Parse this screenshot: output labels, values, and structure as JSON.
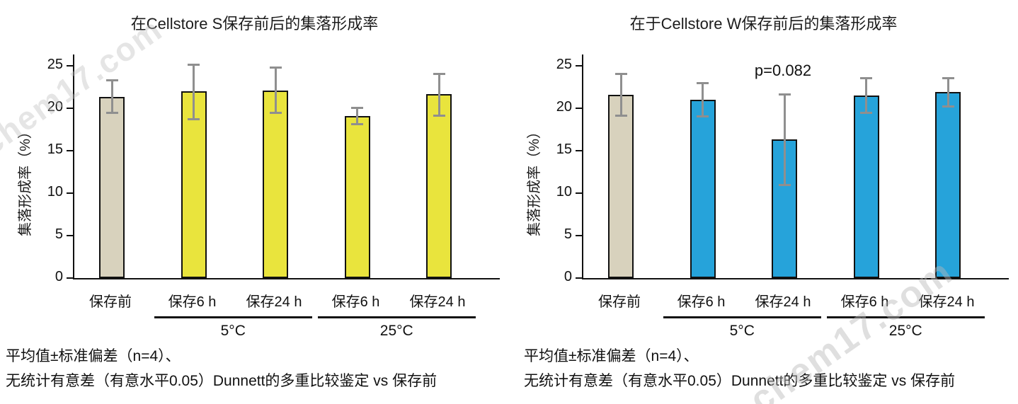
{
  "watermark": {
    "text": "chem17.com"
  },
  "chart_data": [
    {
      "type": "bar",
      "title": "在Cellstore S保存前后的集落形成率",
      "ylabel": "集落形成率（%）",
      "ylim": [
        0,
        25
      ],
      "yticks": [
        0,
        5,
        10,
        15,
        20,
        25
      ],
      "categories": [
        "保存前",
        "保存6 h",
        "保存24 h",
        "保存6 h",
        "保存24 h"
      ],
      "values": [
        21.3,
        22.0,
        22.1,
        19.1,
        21.7
      ],
      "err_low": [
        19.4,
        18.7,
        19.4,
        18.1,
        19.1
      ],
      "err_high": [
        23.3,
        25.2,
        24.8,
        20.1,
        24.1
      ],
      "bar_colors": [
        "#d8d2bd",
        "#e9e43d",
        "#e9e43d",
        "#e9e43d",
        "#e9e43d"
      ],
      "error_color": "#8f8f8f",
      "groups": [
        {
          "label": "5°C",
          "from": 1,
          "to": 2
        },
        {
          "label": "25°C",
          "from": 3,
          "to": 4
        }
      ],
      "annotations": [],
      "footnotes": [
        "平均值±标准偏差（n=4）、",
        "无统计有意差（有意水平0.05）Dunnett的多重比较鉴定 vs 保存前"
      ],
      "grid": false,
      "legend": "none"
    },
    {
      "type": "bar",
      "title": "在于Cellstore W保存前后的集落形成率",
      "ylabel": "集落形成率（%）",
      "ylim": [
        0,
        25
      ],
      "yticks": [
        0,
        5,
        10,
        15,
        20,
        25
      ],
      "categories": [
        "保存前",
        "保存6 h",
        "保存24 h",
        "保存6 h",
        "保存24 h"
      ],
      "values": [
        21.6,
        21.0,
        16.3,
        21.5,
        21.9
      ],
      "err_low": [
        19.1,
        19.0,
        10.9,
        19.4,
        20.2
      ],
      "err_high": [
        24.1,
        23.0,
        21.7,
        23.6,
        23.6
      ],
      "bar_colors": [
        "#d8d2bd",
        "#26a3da",
        "#26a3da",
        "#26a3da",
        "#26a3da"
      ],
      "error_color": "#8f8f8f",
      "groups": [
        {
          "label": "5°C",
          "from": 1,
          "to": 2
        },
        {
          "label": "25°C",
          "from": 3,
          "to": 4
        }
      ],
      "annotations": [
        {
          "text": "p=0.082",
          "bar": 2
        }
      ],
      "footnotes": [
        "平均值±标准偏差（n=4）、",
        "无统计有意差（有意水平0.05）Dunnett的多重比较鉴定 vs 保存前"
      ],
      "grid": false,
      "legend": "none"
    }
  ]
}
